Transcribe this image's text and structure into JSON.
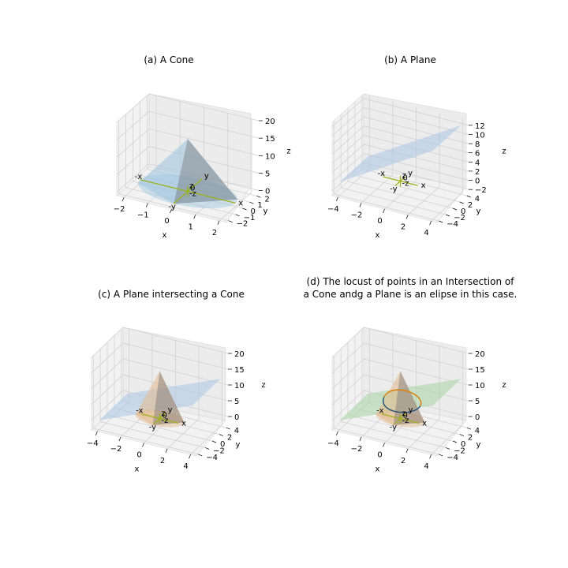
{
  "figure": {
    "chart_data": [
      {
        "id": "a",
        "type": "3d-surface",
        "title": "(a) A Cone",
        "xlabel": "x",
        "ylabel": "y",
        "zlabel": "z",
        "xlim": [
          -2.3,
          2.3
        ],
        "ylim": [
          -2.3,
          2.3
        ],
        "zlim": [
          -1,
          20
        ],
        "xticks": [
          -2,
          -1,
          0,
          1,
          2
        ],
        "yticks": [
          -2,
          -1,
          0,
          1,
          2
        ],
        "zticks": [
          0,
          5,
          10,
          15,
          20
        ],
        "surfaces": [
          {
            "kind": "cone",
            "apex_z": 15,
            "base_z": 0,
            "base_radius": 2,
            "color": "#9ec4e0"
          }
        ],
        "origin_axes": {
          "color": "#9db21a",
          "half_xy": 2,
          "half_z": 1.6,
          "labels": {
            "x": "x",
            "neg_x": "-x",
            "y": "y",
            "neg_y": "-y",
            "z": "z",
            "neg_z": "-z",
            "origin": "0"
          }
        },
        "grid": true
      },
      {
        "id": "b",
        "type": "3d-surface",
        "title": "(b) A Plane",
        "xlabel": "x",
        "ylabel": "y",
        "zlabel": "z",
        "xlim": [
          -4.5,
          4.5
        ],
        "ylim": [
          -4.5,
          4.5
        ],
        "zlim": [
          -3,
          13
        ],
        "xticks": [
          -4,
          -2,
          0,
          2,
          4
        ],
        "yticks": [
          -4,
          -2,
          0,
          2,
          4
        ],
        "zticks": [
          -2,
          0,
          2,
          4,
          6,
          8,
          10,
          12
        ],
        "surfaces": [
          {
            "kind": "plane",
            "equation": "z = 1.5x + 6",
            "x_range": [
              -4,
              4
            ],
            "y_range": [
              -4,
              4
            ],
            "color": "#a9c7e3"
          }
        ],
        "origin_axes": {
          "color": "#9db21a",
          "half_xy": 1.5,
          "half_z": 1.2,
          "labels": {
            "x": "x",
            "neg_x": "-x",
            "y": "y",
            "neg_y": "-y",
            "z": "z",
            "neg_z": "-z",
            "origin": "0"
          }
        },
        "grid": true
      },
      {
        "id": "c",
        "type": "3d-surface",
        "title": "(c) A Plane intersecting a Cone",
        "xlabel": "x",
        "ylabel": "y",
        "zlabel": "z",
        "xlim": [
          -4.5,
          4.5
        ],
        "ylim": [
          -4.5,
          4.5
        ],
        "zlim": [
          -3,
          20
        ],
        "xticks": [
          -4,
          -2,
          0,
          2,
          4
        ],
        "yticks": [
          -4,
          -2,
          0,
          2,
          4
        ],
        "zticks": [
          0,
          5,
          10,
          15,
          20
        ],
        "surfaces": [
          {
            "kind": "plane",
            "equation": "z = 1.5x + 6",
            "x_range": [
              -4,
              4
            ],
            "y_range": [
              -4,
              4
            ],
            "color": "#a9c7e3"
          },
          {
            "kind": "cone",
            "apex_z": 15,
            "base_z": 0,
            "base_radius": 2,
            "color": "#e3b98c"
          }
        ],
        "origin_axes": {
          "color": "#9db21a",
          "half_xy": 1.6,
          "half_z": 1.6,
          "labels": {
            "x": "x",
            "neg_x": "-x",
            "y": "y",
            "neg_y": "-y",
            "z": "z",
            "neg_z": "-z",
            "origin": "0"
          }
        },
        "grid": true
      },
      {
        "id": "d",
        "type": "3d-surface",
        "title": "(d) The locust of points in an Intersection of",
        "title_line2": "a Cone andg a Plane is an elipse in this case.",
        "xlabel": "x",
        "ylabel": "y",
        "zlabel": "z",
        "xlim": [
          -4.5,
          4.5
        ],
        "ylim": [
          -4.5,
          4.5
        ],
        "zlim": [
          -3,
          20
        ],
        "xticks": [
          -4,
          -2,
          0,
          2,
          4
        ],
        "yticks": [
          -4,
          -2,
          0,
          2,
          4
        ],
        "zticks": [
          0,
          5,
          10,
          15,
          20
        ],
        "surfaces": [
          {
            "kind": "plane",
            "equation": "z = 1.5x + 6",
            "x_range": [
              -4,
              4
            ],
            "y_range": [
              -4,
              4
            ],
            "color": "#a7d3a3"
          },
          {
            "kind": "cone",
            "apex_z": 15,
            "base_z": 0,
            "base_radius": 2,
            "color": "#e3b98c"
          }
        ],
        "curves": [
          {
            "kind": "intersection-ellipse",
            "colors": [
              "#1f4e79",
              "#e07b00"
            ]
          }
        ],
        "origin_axes": {
          "color": "#9db21a",
          "half_xy": 1.6,
          "half_z": 1.6,
          "labels": {
            "x": "x",
            "neg_x": "-x",
            "y": "y",
            "neg_y": "-y",
            "z": "z",
            "neg_z": "-z",
            "origin": "0"
          }
        },
        "grid": true
      }
    ]
  }
}
